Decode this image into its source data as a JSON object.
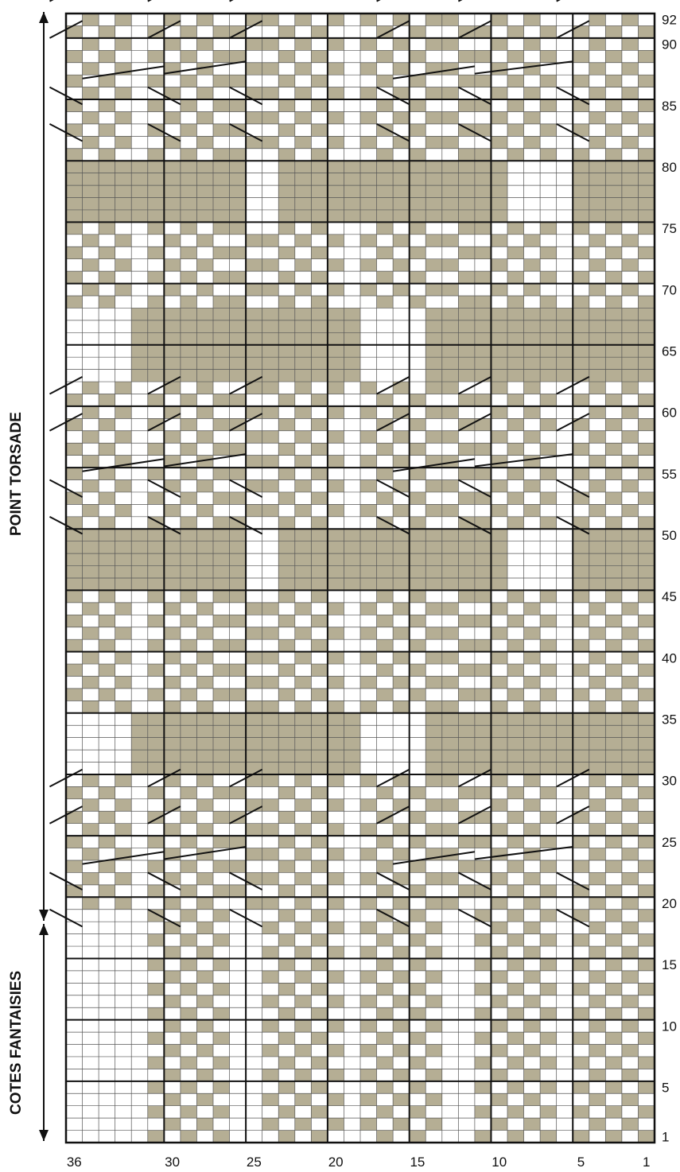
{
  "chart_data": {
    "type": "knitting-chart",
    "columns": 36,
    "rows": 92,
    "sections": [
      {
        "label": "POINT TORSADE",
        "from_row": 20,
        "to_row": 92
      },
      {
        "label": "COTES FANTAISIES",
        "from_row": 1,
        "to_row": 20
      }
    ],
    "x_tick_labels": [
      "36",
      "30",
      "25",
      "20",
      "15",
      "10",
      "5",
      "1"
    ],
    "y_tick_labels": [
      "92",
      "90",
      "85",
      "80",
      "75",
      "70",
      "65",
      "60",
      "55",
      "50",
      "45",
      "40",
      "35",
      "30",
      "25",
      "20",
      "15",
      "10",
      "5",
      "1"
    ],
    "solid_bands": [
      {
        "rows": [
          76,
          80
        ],
        "column_ranges": [
          [
            26,
            36
          ],
          [
            10,
            23
          ],
          [
            1,
            5
          ]
        ]
      },
      {
        "rows": [
          63,
          68
        ],
        "column_ranges": [
          [
            1,
            14
          ],
          [
            19,
            32
          ]
        ]
      },
      {
        "rows": [
          46,
          50
        ],
        "column_ranges": [
          [
            26,
            36
          ],
          [
            10,
            23
          ],
          [
            1,
            5
          ]
        ]
      },
      {
        "rows": [
          31,
          35
        ],
        "column_ranges": [
          [
            1,
            14
          ],
          [
            19,
            32
          ]
        ]
      }
    ],
    "cable_crossings_at_rows": [
      88,
      56,
      24
    ],
    "colors": {
      "shade": "#b5ae94",
      "grid": "#555555",
      "major_grid": "#111111",
      "background": "#ffffff"
    }
  },
  "labels": {
    "section_top": "POINT TORSADE",
    "section_bottom": "COTES FANTAISIES"
  }
}
